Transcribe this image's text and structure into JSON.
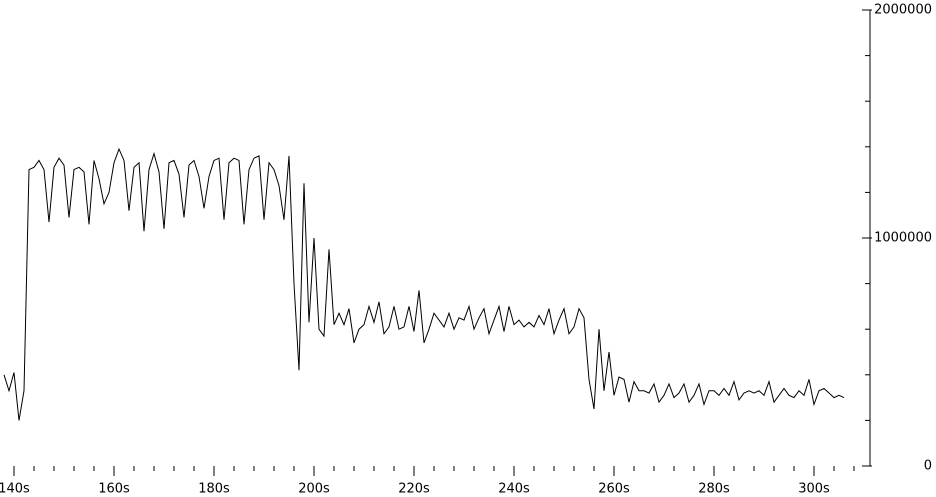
{
  "chart_data": {
    "type": "line",
    "x": [
      138,
      139,
      140,
      141,
      142,
      143,
      144,
      145,
      146,
      147,
      148,
      149,
      150,
      151,
      152,
      153,
      154,
      155,
      156,
      157,
      158,
      159,
      160,
      161,
      162,
      163,
      164,
      165,
      166,
      167,
      168,
      169,
      170,
      171,
      172,
      173,
      174,
      175,
      176,
      177,
      178,
      179,
      180,
      181,
      182,
      183,
      184,
      185,
      186,
      187,
      188,
      189,
      190,
      191,
      192,
      193,
      194,
      195,
      196,
      197,
      198,
      199,
      200,
      201,
      202,
      203,
      204,
      205,
      206,
      207,
      208,
      209,
      210,
      211,
      212,
      213,
      214,
      215,
      216,
      217,
      218,
      219,
      220,
      221,
      222,
      223,
      224,
      225,
      226,
      227,
      228,
      229,
      230,
      231,
      232,
      233,
      234,
      235,
      236,
      237,
      238,
      239,
      240,
      241,
      242,
      243,
      244,
      245,
      246,
      247,
      248,
      249,
      250,
      251,
      252,
      253,
      254,
      255,
      256,
      257,
      258,
      259,
      260,
      261,
      262,
      263,
      264,
      265,
      266,
      267,
      268,
      269,
      270,
      271,
      272,
      273,
      274,
      275,
      276,
      277,
      278,
      279,
      280,
      281,
      282,
      283,
      284,
      285,
      286,
      287,
      288,
      289,
      290,
      291,
      292,
      293,
      294,
      295,
      296,
      297,
      298,
      299,
      300,
      301,
      302,
      303,
      304,
      305,
      306
    ],
    "series": [
      {
        "color": "#000000",
        "values": [
          400000,
          330000,
          410000,
          200000,
          330000,
          1300000,
          1310000,
          1340000,
          1300000,
          1070000,
          1310000,
          1350000,
          1320000,
          1090000,
          1300000,
          1310000,
          1290000,
          1060000,
          1340000,
          1260000,
          1150000,
          1200000,
          1330000,
          1390000,
          1340000,
          1120000,
          1310000,
          1330000,
          1030000,
          1300000,
          1370000,
          1290000,
          1040000,
          1330000,
          1340000,
          1280000,
          1090000,
          1320000,
          1340000,
          1270000,
          1130000,
          1270000,
          1340000,
          1350000,
          1080000,
          1330000,
          1350000,
          1340000,
          1060000,
          1300000,
          1350000,
          1360000,
          1080000,
          1330000,
          1300000,
          1230000,
          1080000,
          1360000,
          800000,
          420000,
          1240000,
          630000,
          1000000,
          600000,
          570000,
          950000,
          620000,
          670000,
          620000,
          690000,
          540000,
          600000,
          620000,
          700000,
          630000,
          720000,
          580000,
          610000,
          700000,
          600000,
          610000,
          700000,
          590000,
          770000,
          540000,
          600000,
          670000,
          640000,
          610000,
          670000,
          600000,
          650000,
          640000,
          700000,
          600000,
          650000,
          690000,
          580000,
          640000,
          700000,
          590000,
          700000,
          620000,
          640000,
          610000,
          630000,
          610000,
          660000,
          620000,
          690000,
          580000,
          640000,
          690000,
          580000,
          610000,
          690000,
          650000,
          380000,
          250000,
          600000,
          330000,
          500000,
          310000,
          390000,
          380000,
          280000,
          370000,
          330000,
          330000,
          320000,
          360000,
          280000,
          310000,
          360000,
          300000,
          320000,
          360000,
          280000,
          310000,
          360000,
          270000,
          330000,
          330000,
          310000,
          340000,
          310000,
          370000,
          290000,
          320000,
          330000,
          320000,
          330000,
          310000,
          370000,
          280000,
          310000,
          340000,
          310000,
          300000,
          330000,
          310000,
          380000,
          270000,
          330000,
          340000,
          320000,
          300000,
          310000,
          300000
        ]
      }
    ],
    "xlim": [
      137.2,
      311.2
    ],
    "xticks": [
      {
        "value": 140,
        "label": "140s"
      },
      {
        "value": 160,
        "label": "160s"
      },
      {
        "value": 180,
        "label": "180s"
      },
      {
        "value": 200,
        "label": "200s"
      },
      {
        "value": 220,
        "label": "220s"
      },
      {
        "value": 240,
        "label": "240s"
      },
      {
        "value": 260,
        "label": "260s"
      },
      {
        "value": 280,
        "label": "280s"
      },
      {
        "value": 300,
        "label": "300s"
      }
    ],
    "ylim": [
      0,
      2000000
    ],
    "yticks": [
      0,
      1000000,
      2000000
    ],
    "y_axis_side": "right"
  }
}
